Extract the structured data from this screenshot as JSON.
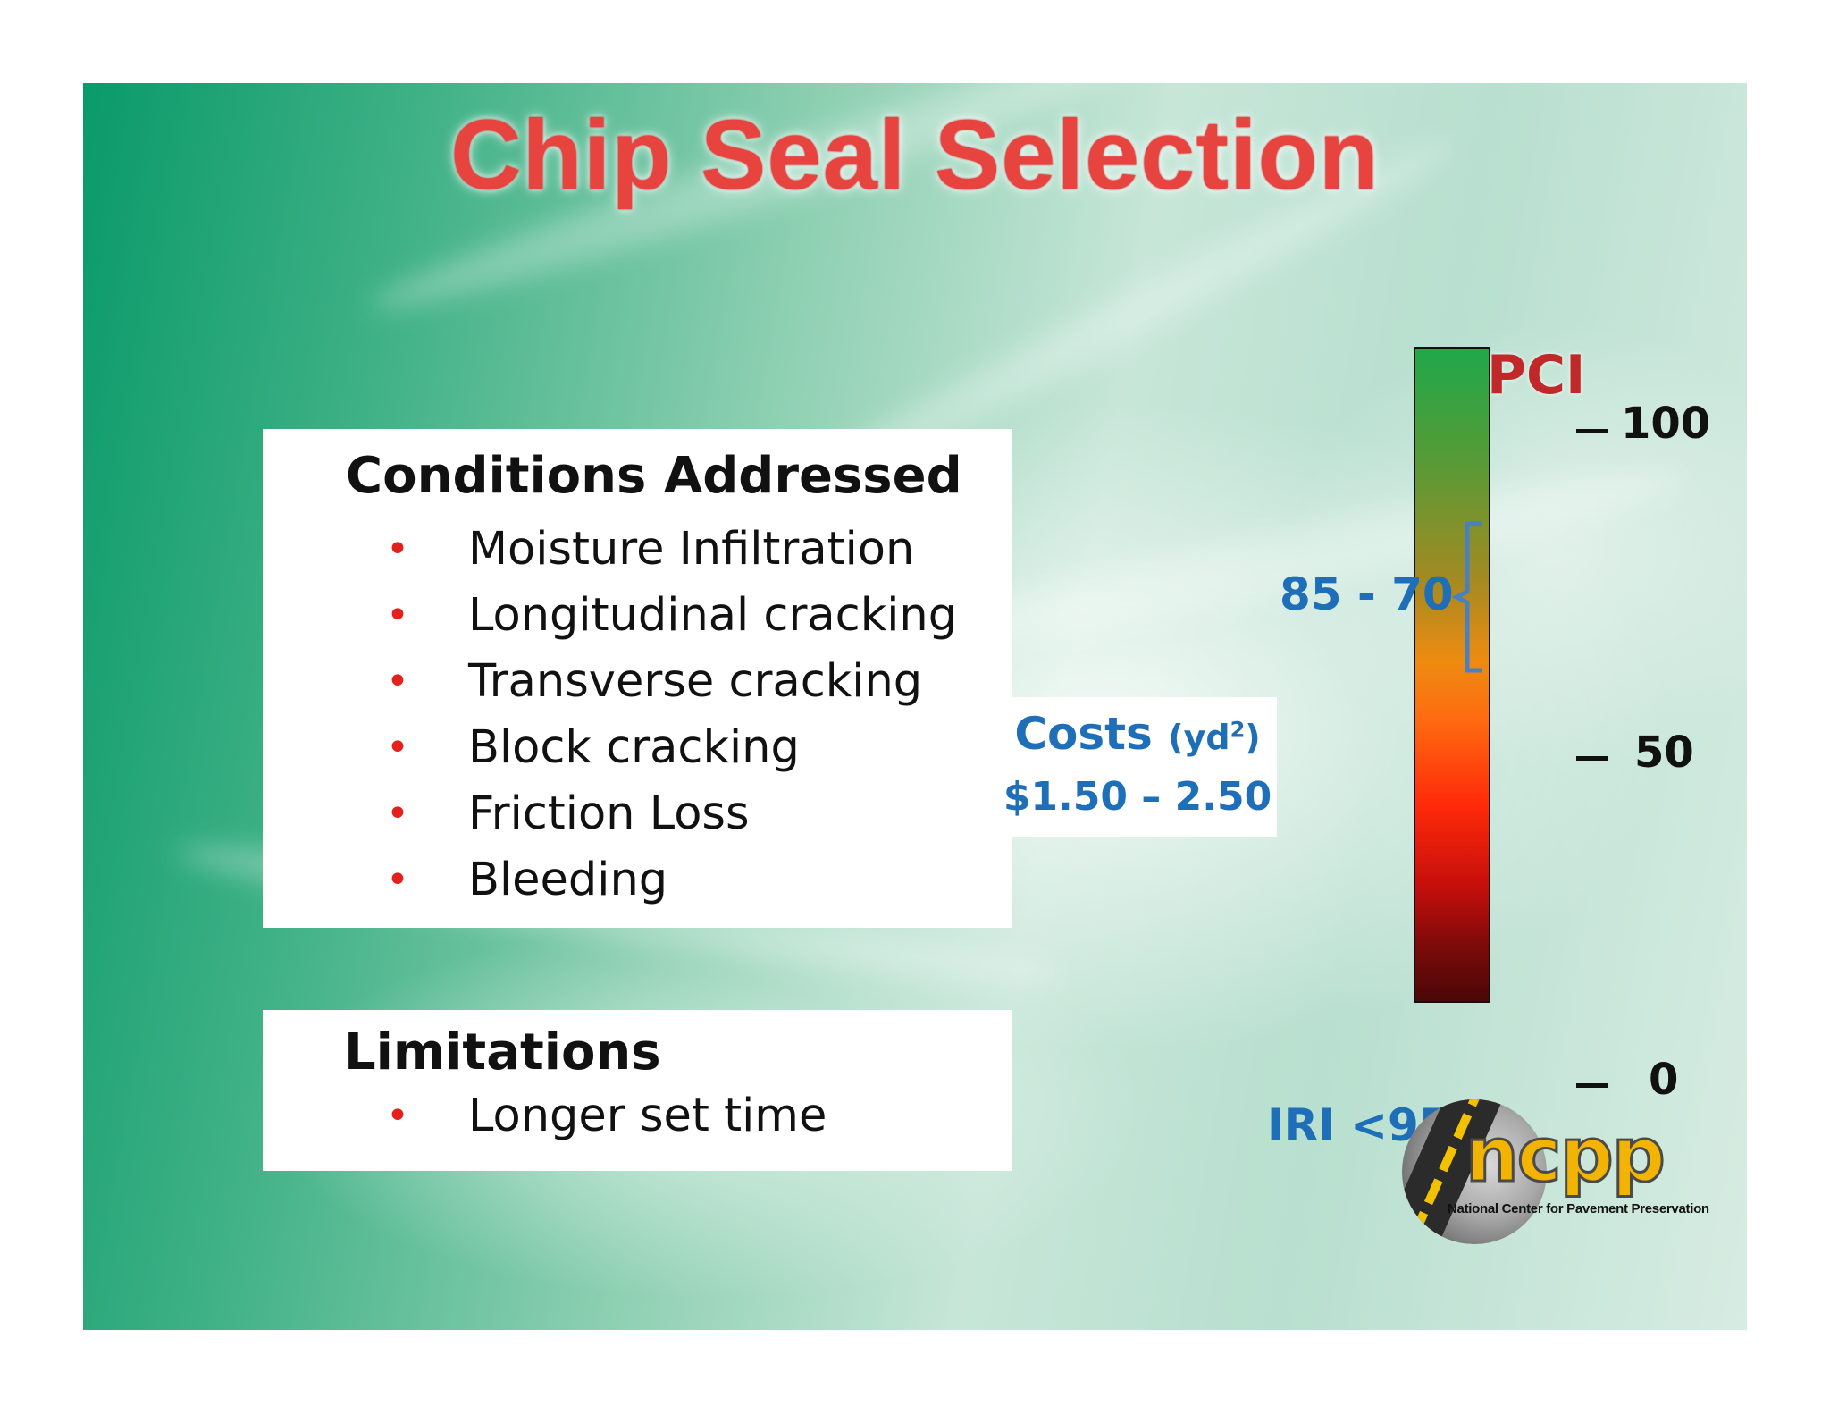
{
  "title": "Chip Seal Selection",
  "conditions": {
    "heading": "Conditions Addressed",
    "items": [
      "Moisture Infiltration",
      "Longitudinal cracking",
      "Transverse cracking",
      "Block cracking",
      "Friction Loss",
      "Bleeding"
    ]
  },
  "limitations": {
    "heading": "Limitations",
    "items": [
      "Longer set time"
    ]
  },
  "pci": {
    "label": "PCI",
    "scale": [
      "100",
      "50",
      "0"
    ],
    "range_label": "85 - 70",
    "range_from": 85,
    "range_to": 70
  },
  "costs": {
    "label": "Costs",
    "unit_prefix": "(yd",
    "unit_sup": "2",
    "unit_suffix": ")",
    "value": "$1.50 – 2.50"
  },
  "iri": "IRI <95",
  "logo": {
    "name": "ncpp",
    "subtitle": "National Center for Pavement Preservation"
  },
  "colors": {
    "title": "#e8443f",
    "accent_blue": "#1f6fb8",
    "bullet": "#e3201b",
    "pci_label": "#c0282a"
  }
}
